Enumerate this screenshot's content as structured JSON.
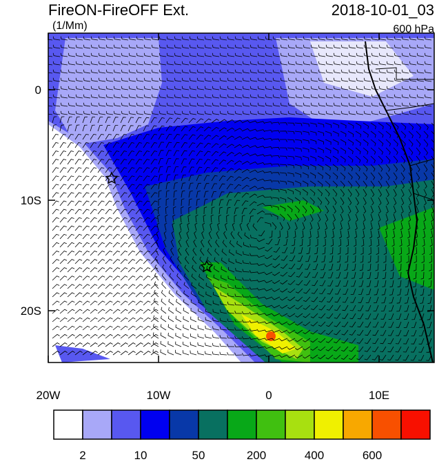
{
  "header": {
    "title": "FireON-FireOFF Ext.",
    "units": "(1/Mm)",
    "time": "2018-10-01_03",
    "level": "600 hPa"
  },
  "map": {
    "lon_labels": [
      "20W",
      "10W",
      "0",
      "10E"
    ],
    "lat_labels": [
      "0",
      "10S",
      "20S"
    ]
  },
  "colorbar": {
    "colors": [
      "#ffffff",
      "#a8a8f8",
      "#5858f0",
      "#0000f0",
      "#0838a8",
      "#087060",
      "#08a818",
      "#40c010",
      "#a8e010",
      "#f0f000",
      "#f8a800",
      "#f85000",
      "#f81000"
    ],
    "labels": [
      "2",
      "10",
      "50",
      "200",
      "400",
      "600"
    ]
  }
}
